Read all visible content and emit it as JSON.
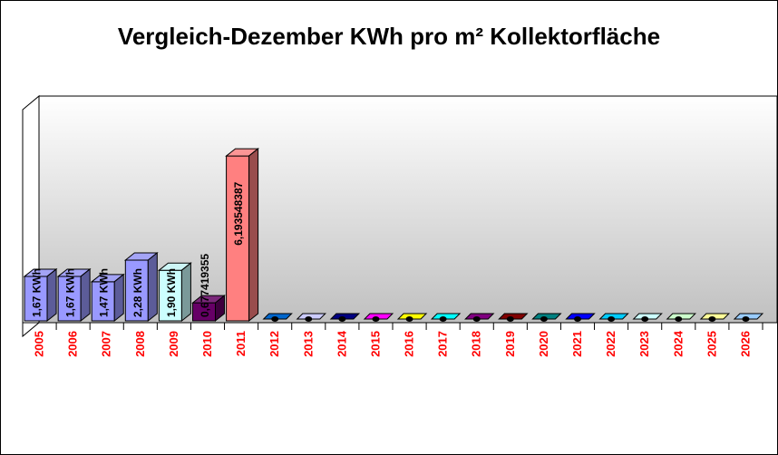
{
  "chart_data": {
    "type": "bar",
    "title": "Vergleich-Dezember KWh pro m² Kollektorfläche",
    "categories": [
      "2005",
      "2006",
      "2007",
      "2008",
      "2009",
      "2010",
      "2011",
      "2012",
      "2013",
      "2014",
      "2015",
      "2016",
      "2017",
      "2018",
      "2019",
      "2020",
      "2021",
      "2022",
      "2023",
      "2024",
      "2025",
      "2026"
    ],
    "values": [
      1.67,
      1.67,
      1.47,
      2.28,
      1.9,
      0.677419355,
      6.193548387,
      0,
      0,
      0,
      0,
      0,
      0,
      0,
      0,
      0,
      0,
      0,
      0,
      0,
      0,
      0
    ],
    "data_labels": [
      "1,67 KWh",
      "1,67 KWh",
      "1,47 KWh",
      "2,28 KWh",
      "1,90 KWh",
      "0,677419355",
      "6,193548387",
      "",
      "",
      "",
      "",
      "",
      "",
      "",
      "",
      "",
      "",
      "",
      "",
      "",
      "",
      ""
    ],
    "colors": [
      "#9999ff",
      "#9999ff",
      "#9999ff",
      "#9999ff",
      "#ccffff",
      "#660066",
      "#ff8080",
      "#0066cc",
      "#ccccff",
      "#000080",
      "#ff00ff",
      "#ffff00",
      "#00ffff",
      "#800080",
      "#800000",
      "#008080",
      "#0000ff",
      "#00ccff",
      "#ccffff",
      "#ccffcc",
      "#ffff99",
      "#99ccff"
    ],
    "ylim": [
      0,
      8
    ],
    "grid": false,
    "legend": "none",
    "tick_label_color": "#ff0000",
    "floor_color": "#008000"
  }
}
